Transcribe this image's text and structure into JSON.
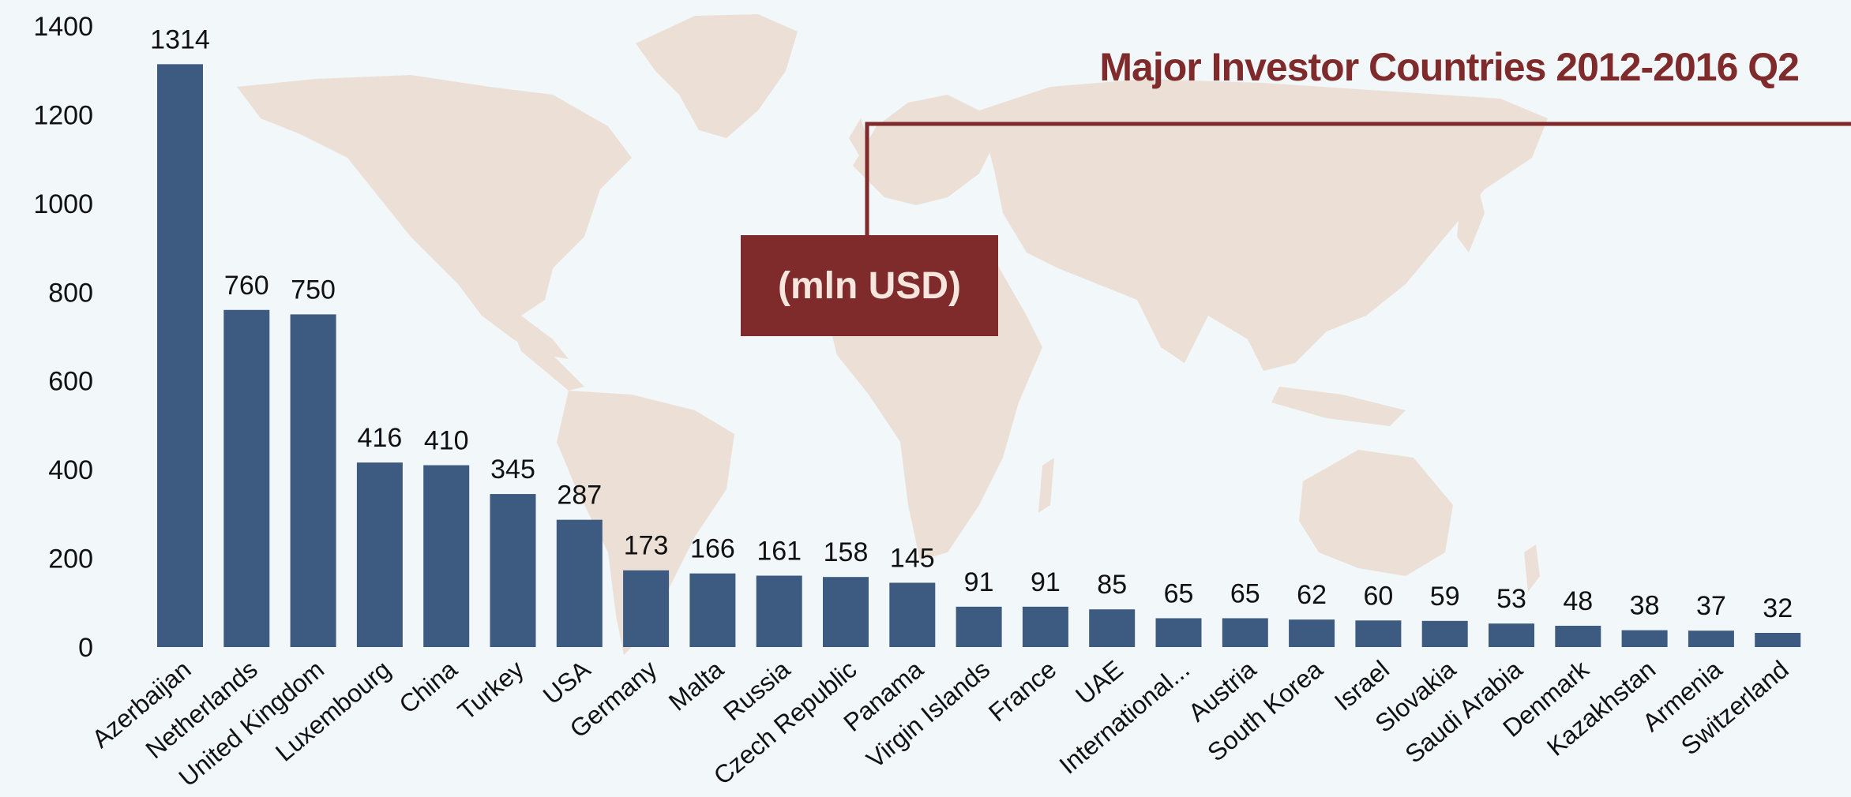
{
  "chart_data": {
    "type": "bar",
    "title": "Major Investor Countries 2012-2016 Q2",
    "unit_label": "(mln USD)",
    "categories": [
      "Azerbaijan",
      "Netherlands",
      "United Kingdom",
      "Luxembourg",
      "China",
      "Turkey",
      "USA",
      "Germany",
      "Malta",
      "Russia",
      "Czech Republic",
      "Panama",
      "Virgin Islands",
      "France",
      "UAE",
      "International...",
      "Austria",
      "South Korea",
      "Israel",
      "Slovakia",
      "Saudi Arabia",
      "Denmark",
      "Kazakhstan",
      "Armenia",
      "Switzerland"
    ],
    "values": [
      1314,
      760,
      750,
      416,
      410,
      345,
      287,
      173,
      166,
      161,
      158,
      145,
      91,
      91,
      85,
      65,
      65,
      62,
      60,
      59,
      53,
      48,
      38,
      37,
      32
    ],
    "value_labels": [
      "1314",
      "760",
      "750",
      "416",
      "410",
      "345",
      "287",
      "173",
      "166",
      "161",
      "158",
      "145",
      "91",
      "91",
      "85",
      "65",
      "65",
      "62",
      "60",
      "59",
      "53",
      "48",
      "38",
      "37",
      "32"
    ],
    "ylim": [
      0,
      1400
    ],
    "yticks": [
      "0",
      "200",
      "400",
      "600",
      "800",
      "1000",
      "1200",
      "1400"
    ],
    "xlabel": "",
    "ylabel": "",
    "grid": false,
    "bar_color": "#3d5a80",
    "title_color": "#7f2a2b",
    "background_color": "#f2f7fa",
    "map_color": "#ece0d6"
  }
}
